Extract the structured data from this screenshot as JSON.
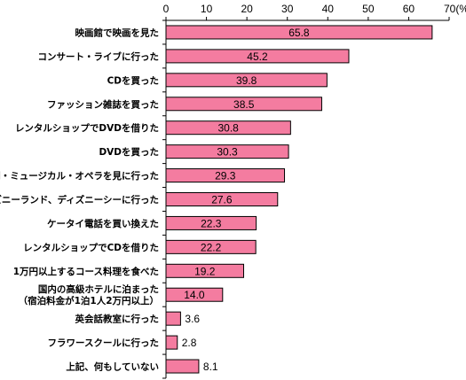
{
  "chart_data": {
    "type": "bar",
    "orientation": "horizontal",
    "categories": [
      [
        "映画館で映画を見た"
      ],
      [
        "コンサート・ライブに行った"
      ],
      [
        "CDを買った"
      ],
      [
        "ファッション雑誌を買った"
      ],
      [
        "レンタルショップでDVDを借りた"
      ],
      [
        "DVDを買った"
      ],
      [
        "演劇・ミュージカル・オペラを見に行った"
      ],
      [
        "ディズニーランド、ディズニーシーに行った"
      ],
      [
        "ケータイ電話を買い換えた"
      ],
      [
        "レンタルショップでCDを借りた"
      ],
      [
        "1万円以上するコース料理を食べた"
      ],
      [
        "国内の高級ホテルに泊まった",
        "（宿泊料金が1泊1人2万円以上）"
      ],
      [
        "英会話教室に行った"
      ],
      [
        "フラワースクールに行った"
      ],
      [
        "上記、何もしていない"
      ]
    ],
    "values": [
      65.8,
      45.2,
      39.8,
      38.5,
      30.8,
      30.3,
      29.3,
      27.6,
      22.3,
      22.2,
      19.2,
      14.0,
      3.6,
      2.8,
      8.1
    ],
    "value_labels": [
      "65.8",
      "45.2",
      "39.8",
      "38.5",
      "30.8",
      "30.3",
      "29.3",
      "27.6",
      "22.3",
      "22.2",
      "19.2",
      "14.0",
      "3.6",
      "2.8",
      "8.1"
    ],
    "xlim": [
      0,
      70
    ],
    "xticks": [
      {
        "value": 0,
        "label": "0"
      },
      {
        "value": 10,
        "label": "10"
      },
      {
        "value": 20,
        "label": "20"
      },
      {
        "value": 30,
        "label": "30"
      },
      {
        "value": 40,
        "label": "40"
      },
      {
        "value": 50,
        "label": "50"
      },
      {
        "value": 60,
        "label": "60"
      },
      {
        "value": 70,
        "label": "70(%)"
      }
    ],
    "axis_position": "top",
    "grid": false,
    "bar_color": "#f47ca0"
  }
}
